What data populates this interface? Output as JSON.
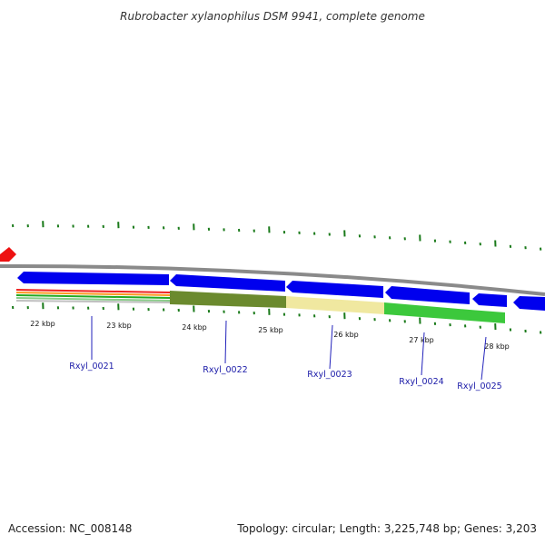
{
  "title": "Rubrobacter xylanophilus DSM 9941, complete genome",
  "footer": {
    "accession": "Accession: NC_008148",
    "summary": "Topology: circular; Length: 3,225,748 bp; Genes: 3,203"
  },
  "kbp_labels": [
    "22 kbp",
    "23 kbp",
    "24 kbp",
    "25 kbp",
    "26 kbp",
    "27 kbp",
    "28 kbp"
  ],
  "genes": [
    {
      "label": "Rxyl_0021",
      "color": "#0000ee"
    },
    {
      "label": "Rxyl_0022",
      "color": "#0000ee"
    },
    {
      "label": "Rxyl_0023",
      "color": "#0000ee"
    },
    {
      "label": "Rxyl_0024",
      "color": "#0000ee"
    },
    {
      "label": "Rxyl_0025",
      "color": "#0000ee"
    }
  ],
  "colors": {
    "backbone": "#8a8a8a",
    "gene": "#0000ee",
    "tick": "#1a7a1a",
    "left_gene": "#ee1111",
    "label_line": "#2222bb",
    "cog_segments": [
      "#6b8a2e",
      "#f0e8a0",
      "#3cc83c",
      "#3cc83c"
    ],
    "stripes": [
      "#ee2222",
      "#ff9922",
      "#22aa22",
      "#88cc88",
      "#c0c0c0"
    ]
  }
}
